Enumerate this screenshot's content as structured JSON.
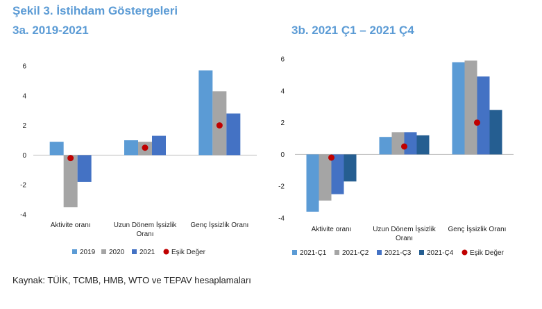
{
  "figure_title": "Şekil 3. İstihdam Göstergeleri",
  "source": "Kaynak: TÜİK, TCMB, HMB, WTO ve TEPAV hesaplamaları",
  "chart_data": [
    {
      "type": "bar",
      "title": "3a. 2019-2021",
      "categories": [
        "Aktivite oranı",
        "Uzun Dönem İşsizlik Oranı",
        "Genç İşsizlik Oranı"
      ],
      "category_lines": [
        [
          "Aktivite oranı"
        ],
        [
          "Uzun Dönem İşsizlik",
          "Oranı"
        ],
        [
          "Genç İşsizlik Oranı"
        ]
      ],
      "ylim": [
        -4,
        6
      ],
      "yticks": [
        6,
        4,
        2,
        0,
        -2,
        -4
      ],
      "series": [
        {
          "name": "2019",
          "color": "#5b9bd5",
          "values": [
            0.9,
            1.0,
            5.7
          ]
        },
        {
          "name": "2020",
          "color": "#a5a5a5",
          "values": [
            -3.5,
            0.9,
            4.3
          ]
        },
        {
          "name": "2021",
          "color": "#4472c4",
          "values": [
            -1.8,
            1.3,
            2.8
          ]
        }
      ],
      "threshold": {
        "name": "Eşik Değer",
        "color": "#c00000",
        "values": [
          -0.2,
          0.5,
          2.0
        ]
      }
    },
    {
      "type": "bar",
      "title": "3b. 2021 Ç1 – 2021 Ç4",
      "categories": [
        "Aktivite oranı",
        "Uzun Dönem İşsizlik Oranı",
        "Genç İşsizlik Oranı"
      ],
      "category_lines": [
        [
          "Aktivite oranı"
        ],
        [
          "Uzun Dönem İşsizlik",
          "Oranı"
        ],
        [
          "Genç İşsizlik Oranı"
        ]
      ],
      "ylim": [
        -4,
        6
      ],
      "yticks": [
        6,
        4,
        2,
        0,
        -2,
        -4
      ],
      "series": [
        {
          "name": "2021-Ç1",
          "color": "#5b9bd5",
          "values": [
            -3.6,
            1.1,
            5.8
          ]
        },
        {
          "name": "2021-Ç2",
          "color": "#a5a5a5",
          "values": [
            -2.9,
            1.4,
            5.9
          ]
        },
        {
          "name": "2021-Ç3",
          "color": "#4472c4",
          "values": [
            -2.5,
            1.4,
            4.9
          ]
        },
        {
          "name": "2021-Ç4",
          "color": "#255e91",
          "values": [
            -1.7,
            1.2,
            2.8
          ]
        }
      ],
      "threshold": {
        "name": "Eşik Değer",
        "color": "#c00000",
        "values": [
          -0.2,
          0.5,
          2.0
        ]
      }
    }
  ]
}
